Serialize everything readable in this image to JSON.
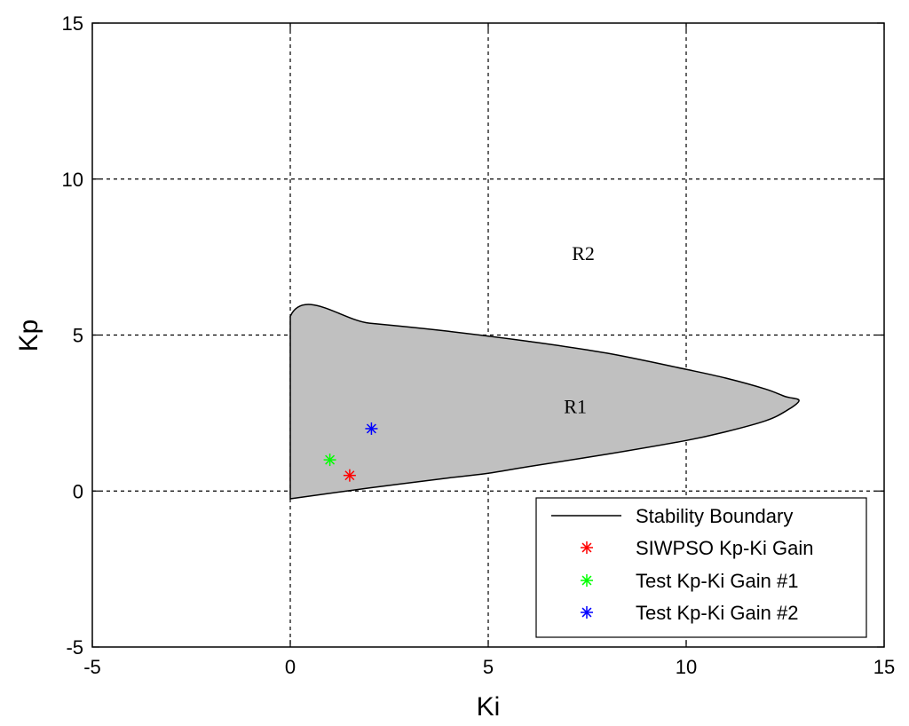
{
  "chart_data": {
    "type": "scatter",
    "title": "",
    "xlabel": "Ki",
    "ylabel": "Kp",
    "xlim": [
      -5,
      15
    ],
    "ylim": [
      -5,
      15
    ],
    "xticks": [
      -5,
      0,
      5,
      10,
      15
    ],
    "yticks": [
      -5,
      0,
      5,
      10,
      15
    ],
    "grid": true,
    "legend_position": "bottom-right",
    "stability_boundary": {
      "name": "Stability Boundary",
      "color": "#000000",
      "fill": "#c0c0c0",
      "points": [
        [
          0,
          -0.25
        ],
        [
          0,
          5.6
        ],
        [
          2,
          5.38
        ],
        [
          4,
          5.12
        ],
        [
          6,
          4.8
        ],
        [
          8,
          4.42
        ],
        [
          10,
          3.9
        ],
        [
          11,
          3.62
        ],
        [
          12,
          3.27
        ],
        [
          12.5,
          3.03
        ],
        [
          12.85,
          2.9
        ],
        [
          12.5,
          2.55
        ],
        [
          12,
          2.25
        ],
        [
          11,
          1.9
        ],
        [
          10,
          1.62
        ],
        [
          8,
          1.18
        ],
        [
          6,
          0.78
        ],
        [
          5,
          0.57
        ],
        [
          4,
          0.42
        ],
        [
          2,
          0.1
        ],
        [
          0,
          -0.25
        ]
      ]
    },
    "series": [
      {
        "name": "SIWPSO Kp-Ki Gain",
        "color": "#ff0000",
        "marker": "*",
        "x": [
          1.5
        ],
        "y": [
          0.5
        ]
      },
      {
        "name": "Test Kp-Ki Gain #1",
        "color": "#00ff00",
        "marker": "*",
        "x": [
          1.0
        ],
        "y": [
          1.0
        ]
      },
      {
        "name": "Test Kp-Ki Gain #2",
        "color": "#0000ff",
        "marker": "*",
        "x": [
          2.05
        ],
        "y": [
          2.0
        ]
      }
    ],
    "annotations": [
      {
        "text": "R1",
        "x": 7.2,
        "y": 2.5
      },
      {
        "text": "R2",
        "x": 7.4,
        "y": 7.4
      }
    ]
  }
}
